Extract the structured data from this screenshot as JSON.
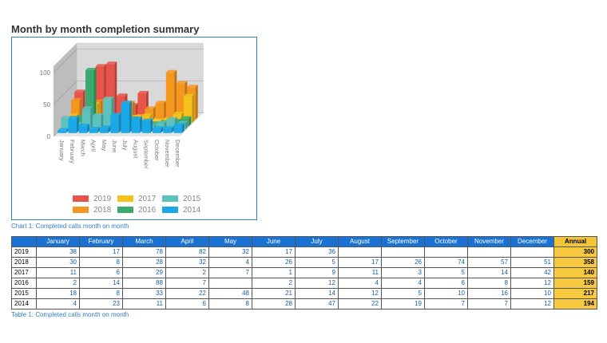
{
  "title": "Month by month completion summary",
  "chart_caption": "Chart 1: Completed calls month on month",
  "table_caption": "Table 1: Completed calls month on month",
  "chart_data": {
    "type": "bar",
    "style": "3d-grouped",
    "categories": [
      "January",
      "February",
      "March",
      "April",
      "May",
      "June",
      "July",
      "August",
      "September",
      "October",
      "November",
      "December"
    ],
    "y_ticks": [
      "0",
      "50",
      "100"
    ],
    "ylim": [
      0,
      100
    ],
    "legend_position": "bottom",
    "series": [
      {
        "name": "2019",
        "color": "#e8534a",
        "values": [
          38,
          17,
          78,
          82,
          32,
          17,
          36,
          null,
          null,
          null,
          null,
          null
        ]
      },
      {
        "name": "2018",
        "color": "#f5961e",
        "values": [
          30,
          8,
          28,
          32,
          4,
          26,
          5,
          17,
          26,
          74,
          57,
          51
        ]
      },
      {
        "name": "2017",
        "color": "#f5c21b",
        "values": [
          11,
          6,
          29,
          2,
          7,
          1,
          9,
          11,
          3,
          5,
          14,
          42
        ]
      },
      {
        "name": "2016",
        "color": "#3aaa6e",
        "values": [
          2,
          14,
          88,
          7,
          null,
          2,
          12,
          4,
          4,
          6,
          8,
          12
        ]
      },
      {
        "name": "2015",
        "color": "#5cc2bd",
        "values": [
          18,
          8,
          33,
          22,
          48,
          21,
          14,
          12,
          5,
          10,
          16,
          10
        ]
      },
      {
        "name": "2014",
        "color": "#1aa8e8",
        "values": [
          4,
          23,
          11,
          6,
          8,
          28,
          47,
          22,
          19,
          7,
          7,
          12
        ]
      }
    ]
  },
  "table": {
    "corner": "",
    "headers": [
      "January",
      "February",
      "March",
      "April",
      "May",
      "June",
      "July",
      "August",
      "September",
      "October",
      "November",
      "December"
    ],
    "annual_header": "Annual",
    "rows": [
      {
        "label": "2019",
        "cells": [
          "38",
          "17",
          "78",
          "82",
          "32",
          "17",
          "36",
          "",
          "",
          "",
          "",
          ""
        ],
        "annual": "300"
      },
      {
        "label": "2018",
        "cells": [
          "30",
          "8",
          "28",
          "32",
          "4",
          "26",
          "5",
          "17",
          "26",
          "74",
          "57",
          "51"
        ],
        "annual": "358"
      },
      {
        "label": "2017",
        "cells": [
          "11",
          "6",
          "29",
          "2",
          "7",
          "1",
          "9",
          "11",
          "3",
          "5",
          "14",
          "42"
        ],
        "annual": "140"
      },
      {
        "label": "2016",
        "cells": [
          "2",
          "14",
          "88",
          "7",
          "",
          "2",
          "12",
          "4",
          "4",
          "6",
          "8",
          "12"
        ],
        "annual": "159"
      },
      {
        "label": "2015",
        "cells": [
          "18",
          "8",
          "33",
          "22",
          "48",
          "21",
          "14",
          "12",
          "5",
          "10",
          "16",
          "10"
        ],
        "annual": "217"
      },
      {
        "label": "2014",
        "cells": [
          "4",
          "23",
          "11",
          "6",
          "8",
          "28",
          "47",
          "22",
          "19",
          "7",
          "7",
          "12"
        ],
        "annual": "194"
      }
    ]
  }
}
